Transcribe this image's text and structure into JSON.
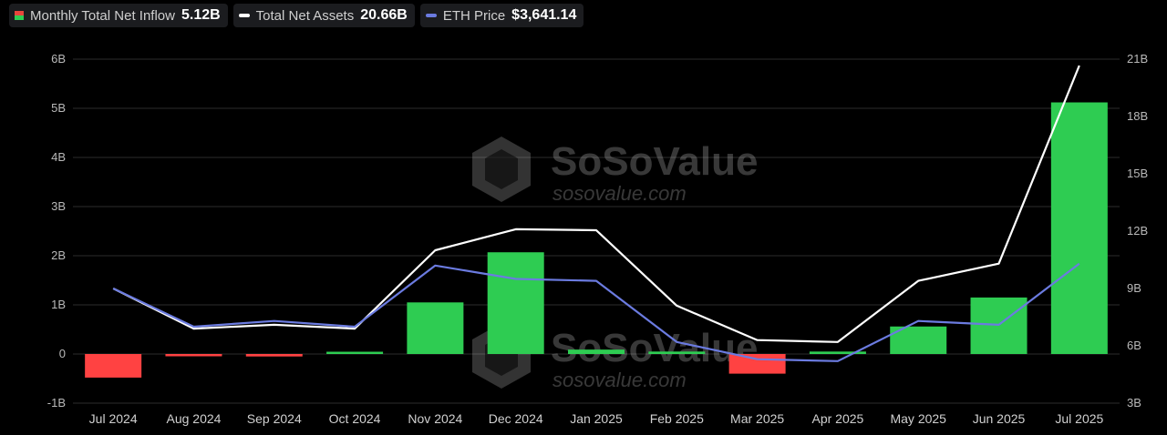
{
  "legend": [
    {
      "label": "Monthly Total Net Inflow",
      "value": "5.12B",
      "swatch": "split"
    },
    {
      "label": "Total Net Assets",
      "value": "20.66B",
      "color": "#ffffff"
    },
    {
      "label": "ETH Price",
      "value": "$3,641.14",
      "color": "#6b7be0"
    }
  ],
  "watermark": {
    "title": "SoSoValue",
    "subtitle": "sosovalue.com"
  },
  "chart_data": {
    "type": "bar",
    "categories": [
      "Jul 2024",
      "Aug 2024",
      "Sep 2024",
      "Oct 2024",
      "Nov 2024",
      "Dec 2024",
      "Jan 2025",
      "Feb 2025",
      "Mar 2025",
      "Apr 2025",
      "May 2025",
      "Jun 2025",
      "Jul 2025"
    ],
    "left_axis": {
      "ticks": [
        "-1B",
        "0",
        "1B",
        "2B",
        "3B",
        "4B",
        "5B",
        "6B"
      ],
      "min": -1,
      "max": 6
    },
    "right_axis": {
      "ticks": [
        "3B",
        "6B",
        "9B",
        "12B",
        "15B",
        "18B",
        "21B"
      ],
      "min": 3,
      "max": 21
    },
    "series": [
      {
        "name": "Monthly Total Net Inflow",
        "kind": "bar",
        "axis": "left",
        "positive_color": "#2ecc52",
        "negative_color": "#ff4242",
        "values": [
          -0.48,
          -0.01,
          -0.05,
          0.03,
          1.05,
          2.07,
          0.09,
          0.05,
          -0.4,
          0.05,
          0.56,
          1.15,
          5.12
        ]
      },
      {
        "name": "Total Net Assets",
        "kind": "line",
        "axis": "right",
        "color": "#ffffff",
        "values": [
          9.0,
          6.9,
          7.1,
          6.9,
          11.0,
          12.1,
          12.05,
          8.1,
          6.3,
          6.2,
          9.4,
          10.3,
          20.66
        ]
      },
      {
        "name": "ETH Price",
        "kind": "line",
        "axis": "right",
        "color": "#6b7be0",
        "values": [
          9.0,
          7.0,
          7.3,
          7.0,
          10.2,
          9.5,
          9.4,
          6.2,
          5.3,
          5.2,
          7.3,
          7.1,
          10.3
        ]
      }
    ],
    "grid": true
  }
}
